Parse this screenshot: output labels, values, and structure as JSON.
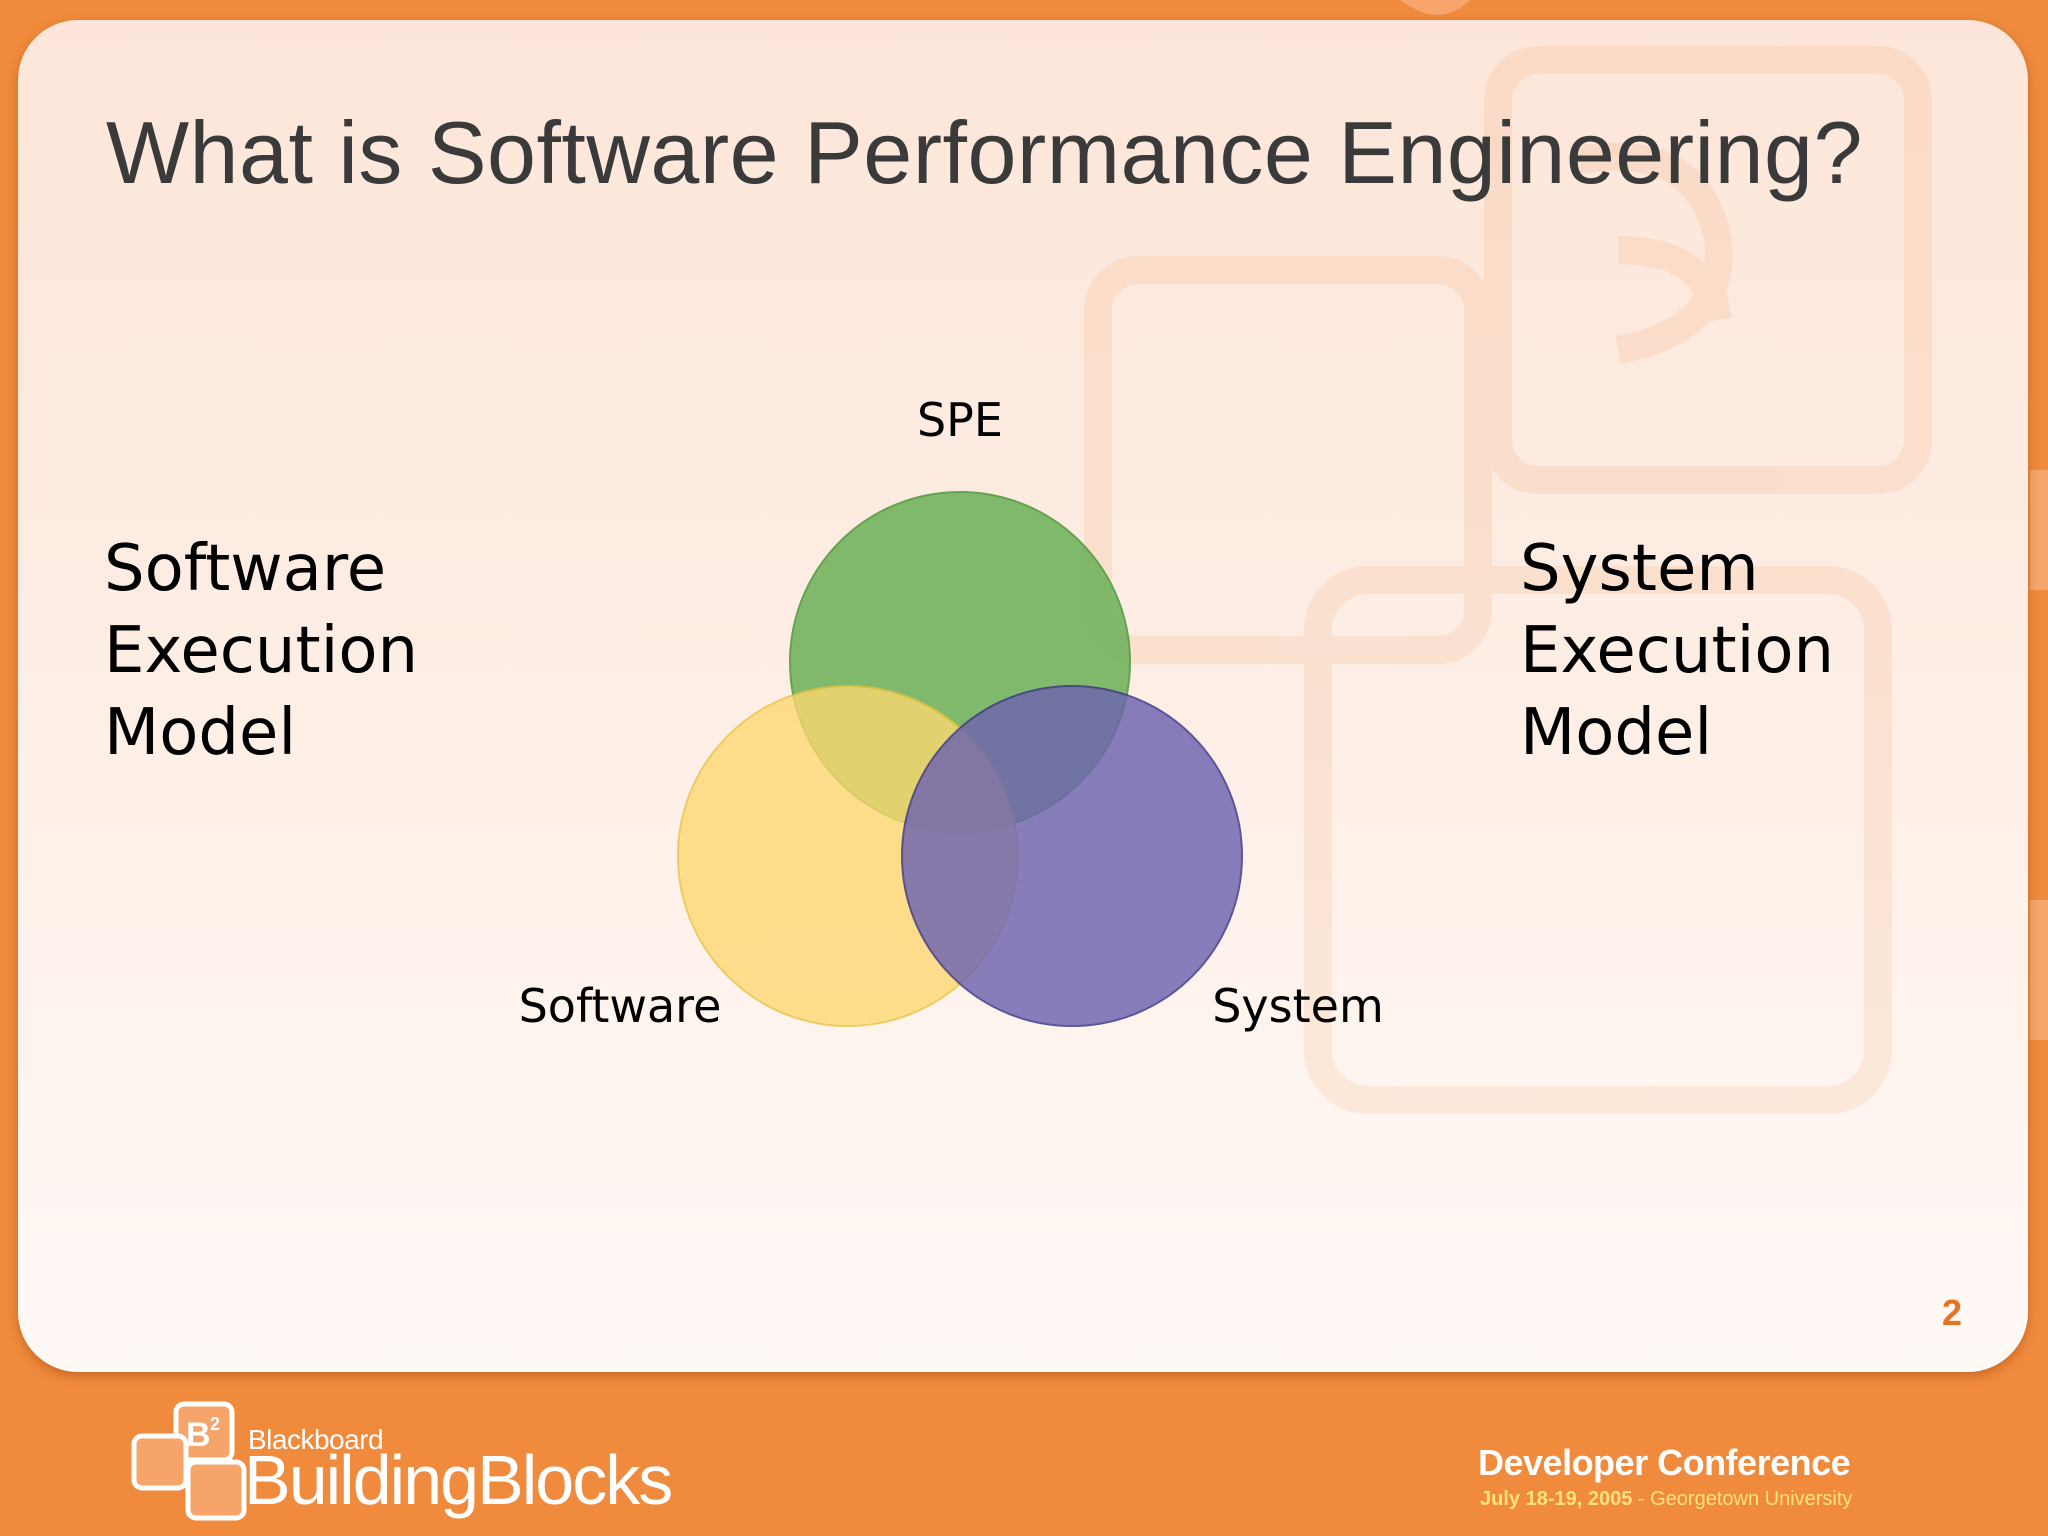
{
  "slide": {
    "title": "What is Software Performance Engineering?",
    "page_number": "2"
  },
  "labels": {
    "left": [
      "Software",
      "Execution",
      "Model"
    ],
    "right": [
      "System",
      "Execution",
      "Model"
    ]
  },
  "venn": {
    "top_label": "SPE",
    "left_label": "Software",
    "right_label": "System",
    "colors": {
      "top": "#6fb25c",
      "left": "#fdd870",
      "right": "#6e64b0"
    }
  },
  "footer": {
    "logo_brand": "Blackboard",
    "logo_product": "BuildingBlocks",
    "conference_title": "Developer Conference",
    "conference_dates": "July 18-19, 2005",
    "conference_venue": " - Georgetown University"
  },
  "theme": {
    "background": "#f08a3c",
    "accent": "#e8731f"
  }
}
